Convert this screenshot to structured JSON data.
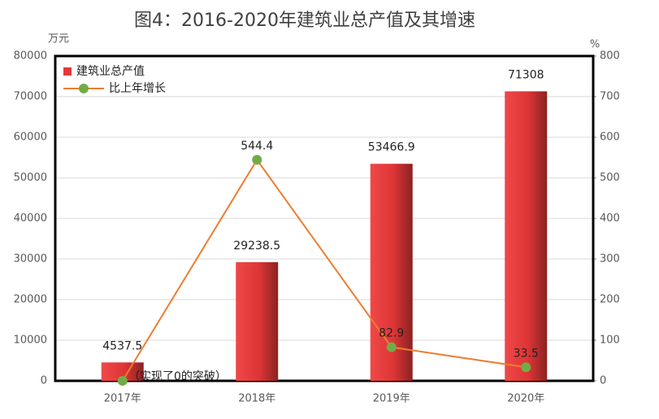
{
  "chart_data": {
    "type": "bar",
    "title": "图4：2016-2020年建筑业总产值及其增速",
    "y_label": "万元",
    "y2_label": "%",
    "categories": [
      "2017年",
      "2018年",
      "2019年",
      "2020年"
    ],
    "series": [
      {
        "name": "建筑业总产值",
        "type": "bar",
        "color": "#e23a3a",
        "values": [
          4537.5,
          29238.5,
          53466.9,
          71308
        ]
      },
      {
        "name": "比上年增长",
        "type": "line",
        "axis": "y2",
        "color": "#ed7d31",
        "marker_color": "#70ad47",
        "values": [
          0,
          544.4,
          82.9,
          33.5
        ],
        "value_labels": [
          null,
          "544.4",
          "82.9",
          "33.5"
        ]
      }
    ],
    "annotation": "（实现了0的突破）",
    "ylim": [
      0,
      80000
    ],
    "yticks": [
      0,
      10000,
      20000,
      30000,
      40000,
      50000,
      60000,
      70000,
      80000
    ],
    "y2lim": [
      0,
      800
    ],
    "y2ticks": [
      0,
      100,
      200,
      300,
      400,
      500,
      600,
      700,
      800
    ],
    "grid": true,
    "legend": "top-left"
  }
}
